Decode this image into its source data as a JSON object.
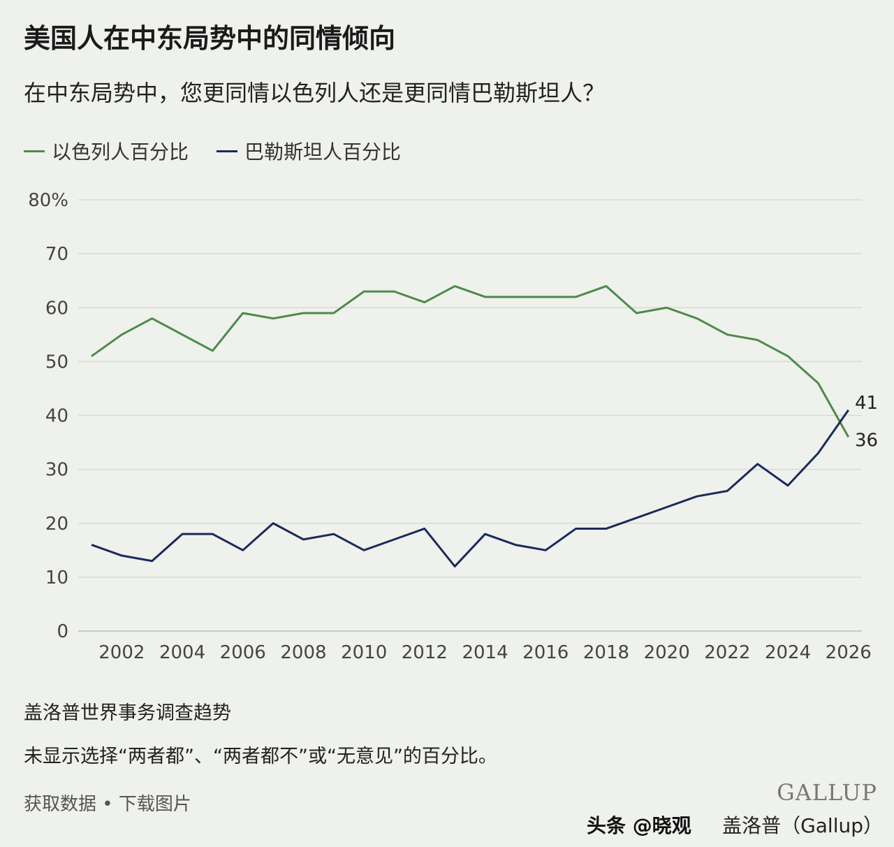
{
  "title": "美国人在中东局势中的同情倾向",
  "subtitle": "在中东局势中，您更同情以色列人还是更同情巴勒斯坦人？",
  "footer": {
    "source": "盖洛普世界事务调查趋势",
    "note": "未显示选择“两者都”、“两者都不”或“无意见”的百分比。",
    "link_data": "获取数据",
    "separator": "•",
    "link_image": "下载图片",
    "logo": "GALLUP",
    "credit": "盖洛普（Gallup）",
    "watermark": "头条 @晓观"
  },
  "chart_data": {
    "type": "line",
    "title": "美国人在中东局势中的同情倾向",
    "x": [
      2001,
      2002,
      2003,
      2004,
      2005,
      2006,
      2007,
      2008,
      2009,
      2010,
      2011,
      2012,
      2013,
      2014,
      2015,
      2016,
      2017,
      2018,
      2019,
      2020,
      2021,
      2022,
      2023,
      2024,
      2025,
      2026
    ],
    "x_ticks": [
      "2002",
      "2004",
      "2006",
      "2008",
      "2010",
      "2012",
      "2014",
      "2016",
      "2018",
      "2020",
      "2022",
      "2024",
      "2026"
    ],
    "y_ticks": [
      "0",
      "10",
      "20",
      "30",
      "40",
      "50",
      "60",
      "70",
      "80%"
    ],
    "ylim": [
      0,
      80
    ],
    "grid": true,
    "legend_position": "top-left",
    "series": [
      {
        "name": "以色列人百分比",
        "color": "#4e8a4a",
        "values": [
          51,
          55,
          58,
          55,
          52,
          59,
          58,
          59,
          59,
          63,
          63,
          61,
          64,
          62,
          62,
          62,
          62,
          64,
          59,
          60,
          58,
          55,
          54,
          51,
          46,
          36
        ],
        "end_label": "36"
      },
      {
        "name": "巴勒斯坦人百分比",
        "color": "#1b2a5a",
        "values": [
          16,
          14,
          13,
          18,
          18,
          15,
          20,
          17,
          18,
          15,
          17,
          19,
          12,
          18,
          16,
          15,
          19,
          19,
          21,
          23,
          25,
          26,
          31,
          27,
          33,
          41
        ],
        "end_label": "41"
      }
    ]
  }
}
